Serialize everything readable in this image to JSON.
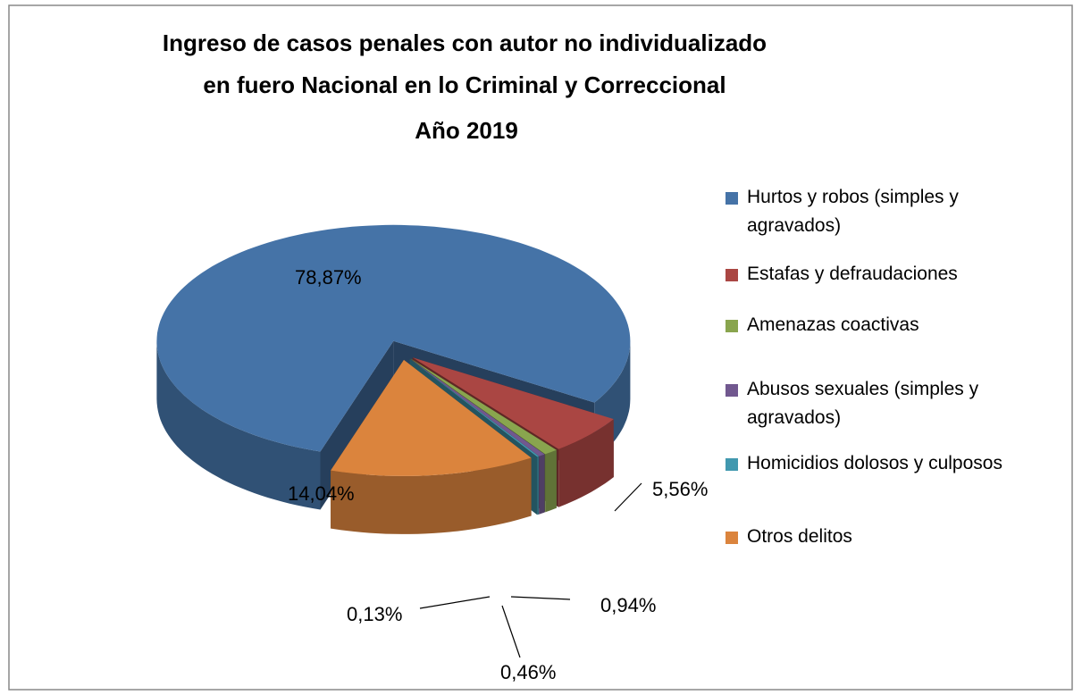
{
  "chart_data": {
    "type": "pie",
    "title": [
      "Ingreso de casos penales con autor no individualizado",
      "en fuero Nacional en lo Criminal y Correccional"
    ],
    "subtitle": "Año 2019",
    "categories": [
      "Hurtos y robos (simples y agravados)",
      "Estafas y defraudaciones",
      "Amenazas coactivas",
      "Abusos sexuales (simples y agravados)",
      "Homicidios dolosos y culposos",
      "Otros delitos"
    ],
    "values": [
      78.87,
      5.56,
      0.94,
      0.46,
      0.13,
      14.04
    ],
    "value_labels": [
      "78,87%",
      "5,56%",
      "0,94%",
      "0,46%",
      "0,13%",
      "14,04%"
    ],
    "colors": [
      "#4573a7",
      "#aa4643",
      "#89a54e",
      "#71588f",
      "#4198af",
      "#db843d"
    ],
    "legend": "right"
  }
}
